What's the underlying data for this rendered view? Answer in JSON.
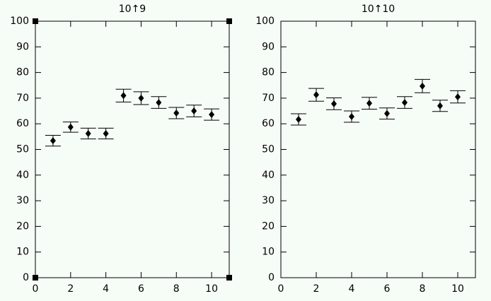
{
  "chart_data": [
    {
      "type": "scatter",
      "title": "10↑9",
      "series": [
        {
          "color": "#000000",
          "x": [
            1,
            2,
            3,
            4,
            5,
            6,
            7,
            8,
            9,
            10
          ],
          "values": [
            53.4,
            58.7,
            56.2,
            56.2,
            71.0,
            70.0,
            68.3,
            64.2,
            65.0,
            63.6
          ],
          "errors": [
            2.1,
            2.0,
            2.1,
            2.1,
            2.5,
            2.5,
            2.3,
            2.2,
            2.3,
            2.2
          ]
        }
      ],
      "xlim": [
        0,
        11
      ],
      "xticks": [
        0,
        2,
        4,
        6,
        8,
        10
      ],
      "ylim": [
        0,
        100
      ],
      "yticks": [
        0,
        10,
        20,
        30,
        40,
        50,
        60,
        70,
        80,
        90,
        100
      ]
    },
    {
      "type": "scatter",
      "title": "10↑10",
      "series": [
        {
          "color": "#000000",
          "x": [
            1,
            2,
            3,
            4,
            5,
            6,
            7,
            8,
            9,
            10
          ],
          "values": [
            61.7,
            71.3,
            67.8,
            62.8,
            68.0,
            64.0,
            68.3,
            74.7,
            67.0,
            70.5
          ],
          "errors": [
            2.2,
            2.5,
            2.3,
            2.2,
            2.3,
            2.2,
            2.3,
            2.6,
            2.2,
            2.4
          ]
        }
      ],
      "xlim": [
        0,
        11
      ],
      "xticks": [
        0,
        2,
        4,
        6,
        8,
        10
      ],
      "ylim": [
        0,
        100
      ],
      "yticks": [
        0,
        10,
        20,
        30,
        40,
        50,
        60,
        70,
        80,
        90,
        100
      ]
    }
  ]
}
